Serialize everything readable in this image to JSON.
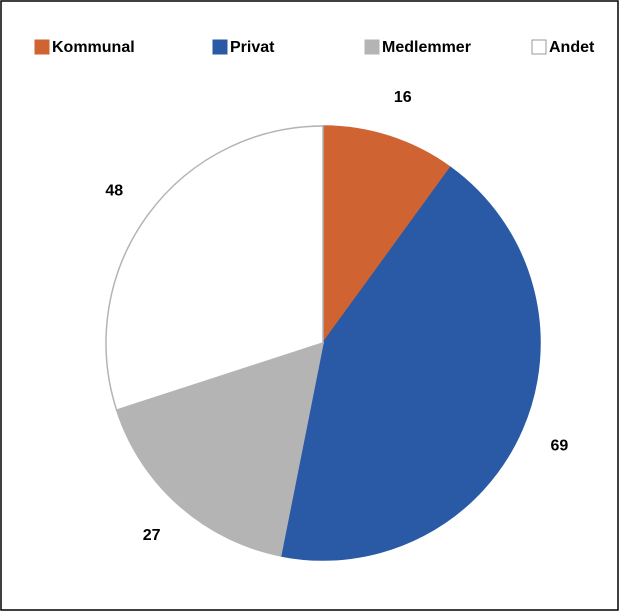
{
  "chart_data": {
    "type": "pie",
    "categories": [
      "Kommunal",
      "Privat",
      "Medlemmer",
      "Andet"
    ],
    "values": [
      16,
      69,
      27,
      48
    ],
    "colors": [
      "#cf6432",
      "#2a5aa5",
      "#b4b4b4",
      "#ffffff"
    ],
    "legend": "top"
  }
}
